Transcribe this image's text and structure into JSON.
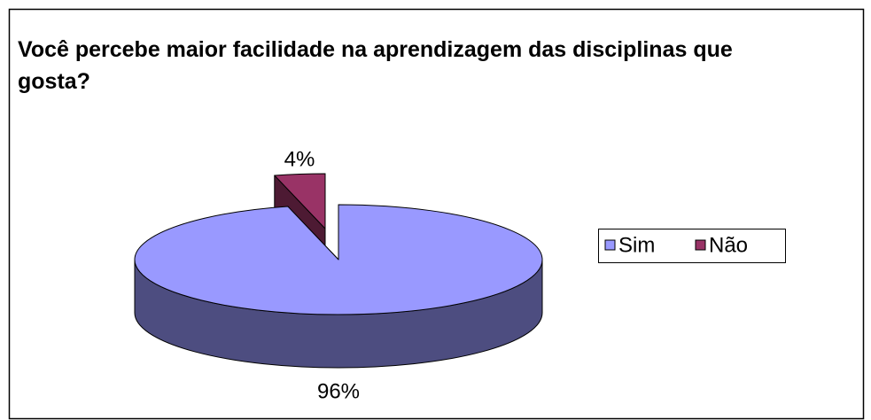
{
  "chart_data": {
    "type": "pie",
    "title": "Você percebe maior facilidade na aprendizagem das disciplinas que gosta?",
    "categories": [
      "Sim",
      "Não"
    ],
    "values": [
      96,
      4
    ],
    "value_labels": [
      "96%",
      "4%"
    ],
    "colors": [
      "#9999FF",
      "#993366"
    ],
    "side_colors": [
      "#4D4D80",
      "#4D1A33"
    ],
    "legend": "right",
    "three_d": true
  }
}
